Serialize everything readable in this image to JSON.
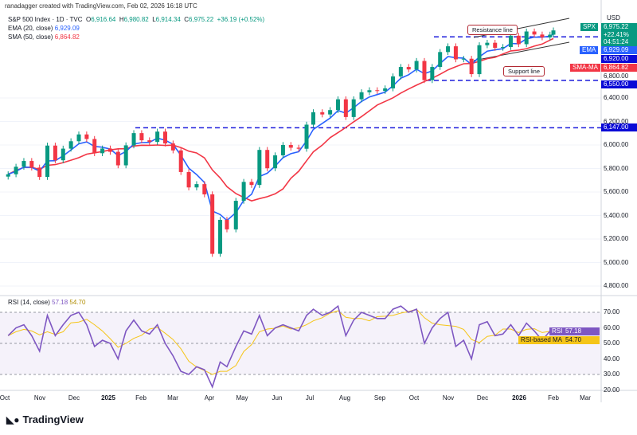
{
  "credit": "ranadagger created with TradingView.com, Feb 02, 2026 16:18 UTC",
  "legend": {
    "symbol": "S&P 500 Index · 1D · TVC",
    "o_label": "O",
    "open": "6,916.64",
    "h_label": "H",
    "high": "6,980.82",
    "l_label": "L",
    "low": "6,914.34",
    "c_label": "C",
    "close": "6,975.22",
    "change": "+36.19 (+0.52%)",
    "ema_label": "EMA (20, close)",
    "ema_value": "6,929.09",
    "sma_label": "SMA (50, close)",
    "sma_value": "6,864.82",
    "rsi_label": "RSI (14, close)",
    "rsi_value": "57.18",
    "rsi_ma_value": "54.70"
  },
  "currency": "USD",
  "price_axis": [
    "6,400.00",
    "6,200.00",
    "6,000.00",
    "5,800.00",
    "5,600.00",
    "5,400.00",
    "5,200.00",
    "5,000.00",
    "4,800.00"
  ],
  "price_tags": {
    "spx_label": "SPX",
    "price": "6,975.22",
    "pct": "+22.41%",
    "countdown": "04:51:24",
    "ema_label": "EMA",
    "ema": "6,929.09",
    "resistance": "6,920.00",
    "sma_label": "SMA-MA",
    "sma": "6,864.82",
    "hidden": "6,800.00",
    "support": "6,550.00",
    "level": "6,147.00"
  },
  "rsi_axis": [
    "70.00",
    "60.00",
    "50.00",
    "40.00",
    "30.00",
    "20.00"
  ],
  "rsi_tags": {
    "rsi_label": "RSI",
    "rsi": "57.18",
    "ma_label": "RSI-based MA",
    "ma": "54.70"
  },
  "time_axis": [
    "Oct",
    "Nov",
    "Dec",
    "2025",
    "Feb",
    "Mar",
    "Apr",
    "May",
    "Jun",
    "Jul",
    "Aug",
    "Sep",
    "Oct",
    "Nov",
    "Dec",
    "2026",
    "Feb",
    "Mar"
  ],
  "annotations": {
    "resistance": "Resistance line",
    "support": "Support line"
  },
  "logo": "TradingView",
  "colors": {
    "up": "#089981",
    "down": "#f23645",
    "ema": "#2962ff",
    "sma": "#f23645",
    "rsi": "#7e57c2",
    "rsi_ma": "#f5c518",
    "lines": "#1a1adb"
  },
  "chart_data": {
    "type": "candlestick",
    "dates": [
      "2024-10-04",
      "2024-10-11",
      "2024-10-18",
      "2024-10-25",
      "2024-11-01",
      "2024-11-08",
      "2024-11-15",
      "2024-11-22",
      "2024-11-29",
      "2024-12-06",
      "2024-12-13",
      "2024-12-20",
      "2024-12-27",
      "2025-01-03",
      "2025-01-10",
      "2025-01-17",
      "2025-01-24",
      "2025-01-31",
      "2025-02-07",
      "2025-02-14",
      "2025-02-21",
      "2025-02-28",
      "2025-03-07",
      "2025-03-14",
      "2025-03-21",
      "2025-03-28",
      "2025-04-04",
      "2025-04-11",
      "2025-04-17",
      "2025-04-25",
      "2025-05-02",
      "2025-05-09",
      "2025-05-16",
      "2025-05-23",
      "2025-05-30",
      "2025-06-06",
      "2025-06-13",
      "2025-06-20",
      "2025-06-27",
      "2025-07-03",
      "2025-07-11",
      "2025-07-18",
      "2025-07-25",
      "2025-08-01",
      "2025-08-08",
      "2025-08-15",
      "2025-08-22",
      "2025-08-29",
      "2025-09-05",
      "2025-09-12",
      "2025-09-19",
      "2025-09-26",
      "2025-10-03",
      "2025-10-10",
      "2025-10-17",
      "2025-10-24",
      "2025-10-31",
      "2025-11-07",
      "2025-11-14",
      "2025-11-21",
      "2025-11-28",
      "2025-12-05",
      "2025-12-12",
      "2025-12-19",
      "2025-12-26",
      "2026-01-02",
      "2026-01-09",
      "2026-01-16",
      "2026-01-23",
      "2026-01-30",
      "2026-02-02"
    ],
    "close": [
      5751,
      5815,
      5864,
      5808,
      5728,
      5995,
      5870,
      5969,
      6032,
      6090,
      6051,
      5930,
      5970,
      5942,
      5827,
      5997,
      6101,
      6040,
      6026,
      6114,
      6013,
      5954,
      5770,
      5639,
      5667,
      5580,
      5074,
      5363,
      5282,
      5525,
      5686,
      5660,
      5958,
      5802,
      5912,
      6000,
      5977,
      5968,
      6173,
      6279,
      6260,
      6297,
      6389,
      6238,
      6389,
      6449,
      6466,
      6460,
      6482,
      6584,
      6664,
      6643,
      6715,
      6552,
      6664,
      6791,
      6840,
      6729,
      6734,
      6603,
      6849,
      6870,
      6827,
      6834,
      6930,
      6858,
      6966,
      6940,
      6916,
      6939,
      6975
    ],
    "rsi": [
      55,
      60,
      62,
      55,
      45,
      68,
      55,
      62,
      68,
      70,
      62,
      48,
      52,
      50,
      40,
      58,
      65,
      58,
      56,
      62,
      50,
      42,
      32,
      30,
      35,
      33,
      22,
      38,
      35,
      48,
      58,
      56,
      68,
      55,
      60,
      62,
      60,
      58,
      68,
      72,
      68,
      70,
      74,
      55,
      65,
      70,
      68,
      66,
      66,
      72,
      74,
      70,
      72,
      50,
      60,
      66,
      70,
      48,
      52,
      40,
      62,
      64,
      55,
      56,
      62,
      55,
      63,
      58,
      52,
      58,
      57.18
    ],
    "levels": [
      6920,
      6550,
      6147
    ],
    "ylim": [
      4750,
      7100
    ],
    "rsi_bands": [
      70,
      50,
      30
    ]
  }
}
